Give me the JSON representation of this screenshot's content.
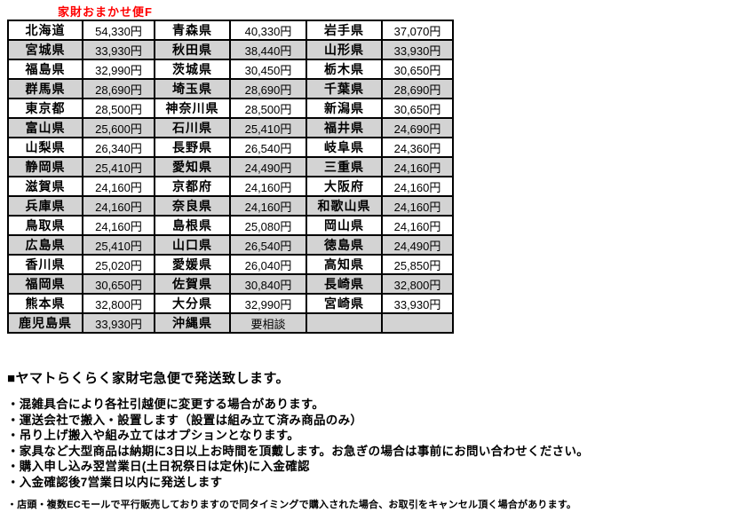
{
  "title": "家財おまかせ便F",
  "colors": {
    "title_red": "#ff0000",
    "row_shade": "#d3d3d3",
    "border": "#000000",
    "text": "#000000"
  },
  "table": {
    "consult_label": "要相談",
    "rows": [
      {
        "shaded": false,
        "cells": [
          "北海道",
          "54,330円",
          "青森県",
          "40,330円",
          "岩手県",
          "37,070円"
        ]
      },
      {
        "shaded": true,
        "cells": [
          "宮城県",
          "33,930円",
          "秋田県",
          "38,440円",
          "山形県",
          "33,930円"
        ]
      },
      {
        "shaded": false,
        "cells": [
          "福島県",
          "32,990円",
          "茨城県",
          "30,450円",
          "栃木県",
          "30,650円"
        ]
      },
      {
        "shaded": true,
        "cells": [
          "群馬県",
          "28,690円",
          "埼玉県",
          "28,690円",
          "千葉県",
          "28,690円"
        ]
      },
      {
        "shaded": false,
        "cells": [
          "東京都",
          "28,500円",
          "神奈川県",
          "28,500円",
          "新潟県",
          "30,650円"
        ]
      },
      {
        "shaded": true,
        "cells": [
          "富山県",
          "25,600円",
          "石川県",
          "25,410円",
          "福井県",
          "24,690円"
        ]
      },
      {
        "shaded": false,
        "cells": [
          "山梨県",
          "26,340円",
          "長野県",
          "26,540円",
          "岐阜県",
          "24,360円"
        ]
      },
      {
        "shaded": true,
        "cells": [
          "静岡県",
          "25,410円",
          "愛知県",
          "24,490円",
          "三重県",
          "24,160円"
        ]
      },
      {
        "shaded": false,
        "cells": [
          "滋賀県",
          "24,160円",
          "京都府",
          "24,160円",
          "大阪府",
          "24,160円"
        ]
      },
      {
        "shaded": true,
        "cells": [
          "兵庫県",
          "24,160円",
          "奈良県",
          "24,160円",
          "和歌山県",
          "24,160円"
        ]
      },
      {
        "shaded": false,
        "cells": [
          "鳥取県",
          "24,160円",
          "島根県",
          "25,080円",
          "岡山県",
          "24,160円"
        ]
      },
      {
        "shaded": true,
        "cells": [
          "広島県",
          "25,410円",
          "山口県",
          "26,540円",
          "徳島県",
          "24,490円"
        ]
      },
      {
        "shaded": false,
        "cells": [
          "香川県",
          "25,020円",
          "愛媛県",
          "26,040円",
          "高知県",
          "25,850円"
        ]
      },
      {
        "shaded": true,
        "cells": [
          "福岡県",
          "30,650円",
          "佐賀県",
          "30,840円",
          "長崎県",
          "32,800円"
        ]
      },
      {
        "shaded": false,
        "cells": [
          "熊本県",
          "32,800円",
          "大分県",
          "32,990円",
          "宮崎県",
          "33,930円"
        ]
      },
      {
        "shaded": true,
        "cells": [
          "鹿児島県",
          "33,930円",
          "沖縄県",
          "要相談",
          "",
          ""
        ]
      }
    ]
  },
  "notes": {
    "heading": "■ヤマトらくらく家財宅急便で発送致します。",
    "bullets": [
      "・混雑具合により各社引越便に変更する場合があります。",
      "・運送会社で搬入・設置します（設置は組み立て済み商品のみ）",
      "・吊り上げ搬入や組み立てはオプションとなります。",
      "・家具など大型商品は納期に3日以上お時間を頂戴します。お急ぎの場合は事前にお問い合わせください。",
      "・購入申し込み翌営業日(土日祝祭日は定休)に入金確認",
      "・入金確認後7営業日以内に発送します"
    ],
    "small_note": "・店頭・複数ECモールで平行販売しておりますので同タイミングで購入された場合、お取引をキャンセル頂く場合があります。"
  }
}
